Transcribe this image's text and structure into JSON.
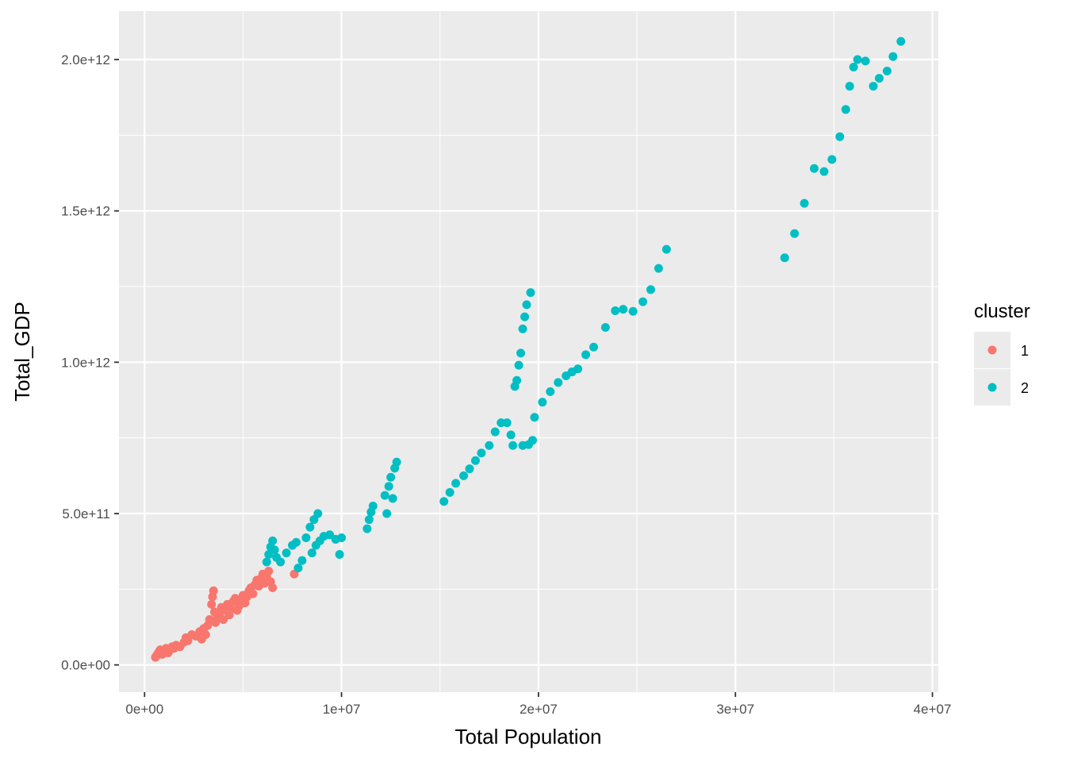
{
  "chart_data": {
    "type": "scatter",
    "xlabel": "Total Population",
    "ylabel": "Total_GDP",
    "xlim": [
      -1300000,
      40300000
    ],
    "ylim": [
      -90000000000,
      2160000000000
    ],
    "x_ticks": [
      0,
      10000000,
      20000000,
      30000000,
      40000000
    ],
    "x_tick_labels": [
      "0e+00",
      "1e+07",
      "2e+07",
      "3e+07",
      "4e+07"
    ],
    "y_ticks": [
      0,
      500000000000,
      1000000000000,
      1500000000000,
      2000000000000
    ],
    "y_tick_labels": [
      "0.0e+00",
      "5.0e+11",
      "1.0e+12",
      "1.5e+12",
      "2.0e+12"
    ],
    "grid": true,
    "legend": {
      "title": "cluster",
      "position": "right",
      "entries": [
        "1",
        "2"
      ]
    },
    "colors": {
      "1": "#F8766D",
      "2": "#00BFC4",
      "panel": "#EBEBEB",
      "grid": "#FFFFFF"
    },
    "series": [
      {
        "name": "1",
        "color": "#F8766D",
        "points": [
          [
            550000,
            25000000000
          ],
          [
            600000,
            30000000000
          ],
          [
            650000,
            35000000000
          ],
          [
            700000,
            40000000000
          ],
          [
            750000,
            45000000000
          ],
          [
            800000,
            50000000000
          ],
          [
            900000,
            35000000000
          ],
          [
            1000000,
            45000000000
          ],
          [
            1100000,
            55000000000
          ],
          [
            1200000,
            40000000000
          ],
          [
            1300000,
            50000000000
          ],
          [
            1400000,
            60000000000
          ],
          [
            1500000,
            55000000000
          ],
          [
            1600000,
            65000000000
          ],
          [
            1800000,
            60000000000
          ],
          [
            2000000,
            75000000000
          ],
          [
            2100000,
            90000000000
          ],
          [
            2200000,
            80000000000
          ],
          [
            2400000,
            100000000000
          ],
          [
            2600000,
            95000000000
          ],
          [
            2800000,
            110000000000
          ],
          [
            2900000,
            85000000000
          ],
          [
            3000000,
            120000000000
          ],
          [
            3100000,
            100000000000
          ],
          [
            3200000,
            130000000000
          ],
          [
            3300000,
            150000000000
          ],
          [
            3400000,
            200000000000
          ],
          [
            3450000,
            225000000000
          ],
          [
            3500000,
            245000000000
          ],
          [
            3550000,
            175000000000
          ],
          [
            3600000,
            140000000000
          ],
          [
            3700000,
            160000000000
          ],
          [
            3800000,
            170000000000
          ],
          [
            3900000,
            190000000000
          ],
          [
            4000000,
            150000000000
          ],
          [
            4100000,
            180000000000
          ],
          [
            4200000,
            200000000000
          ],
          [
            4300000,
            165000000000
          ],
          [
            4400000,
            185000000000
          ],
          [
            4500000,
            210000000000
          ],
          [
            4600000,
            220000000000
          ],
          [
            4700000,
            180000000000
          ],
          [
            4800000,
            195000000000
          ],
          [
            4900000,
            215000000000
          ],
          [
            5000000,
            230000000000
          ],
          [
            5100000,
            205000000000
          ],
          [
            5200000,
            225000000000
          ],
          [
            5300000,
            245000000000
          ],
          [
            5400000,
            255000000000
          ],
          [
            5500000,
            235000000000
          ],
          [
            5600000,
            265000000000
          ],
          [
            5700000,
            280000000000
          ],
          [
            5800000,
            260000000000
          ],
          [
            5900000,
            285000000000
          ],
          [
            6000000,
            300000000000
          ],
          [
            6100000,
            270000000000
          ],
          [
            6200000,
            290000000000
          ],
          [
            6300000,
            310000000000
          ],
          [
            6400000,
            275000000000
          ],
          [
            6500000,
            255000000000
          ],
          [
            7600000,
            300000000000
          ]
        ]
      },
      {
        "name": "2",
        "color": "#00BFC4",
        "points": [
          [
            6200000,
            340000000000
          ],
          [
            6300000,
            365000000000
          ],
          [
            6400000,
            390000000000
          ],
          [
            6500000,
            410000000000
          ],
          [
            6600000,
            380000000000
          ],
          [
            6700000,
            355000000000
          ],
          [
            6900000,
            340000000000
          ],
          [
            7200000,
            370000000000
          ],
          [
            7500000,
            395000000000
          ],
          [
            7700000,
            405000000000
          ],
          [
            7800000,
            320000000000
          ],
          [
            8000000,
            345000000000
          ],
          [
            8200000,
            420000000000
          ],
          [
            8400000,
            455000000000
          ],
          [
            8600000,
            480000000000
          ],
          [
            8800000,
            500000000000
          ],
          [
            8500000,
            370000000000
          ],
          [
            8700000,
            395000000000
          ],
          [
            8900000,
            410000000000
          ],
          [
            9100000,
            425000000000
          ],
          [
            9400000,
            430000000000
          ],
          [
            9700000,
            415000000000
          ],
          [
            9900000,
            365000000000
          ],
          [
            10000000,
            420000000000
          ],
          [
            11300000,
            450000000000
          ],
          [
            11400000,
            480000000000
          ],
          [
            11500000,
            505000000000
          ],
          [
            11600000,
            525000000000
          ],
          [
            12200000,
            560000000000
          ],
          [
            12300000,
            500000000000
          ],
          [
            12400000,
            590000000000
          ],
          [
            12500000,
            620000000000
          ],
          [
            12600000,
            550000000000
          ],
          [
            12700000,
            650000000000
          ],
          [
            12800000,
            670000000000
          ],
          [
            15200000,
            540000000000
          ],
          [
            15500000,
            570000000000
          ],
          [
            15800000,
            600000000000
          ],
          [
            16200000,
            625000000000
          ],
          [
            16500000,
            648000000000
          ],
          [
            16800000,
            675000000000
          ],
          [
            17100000,
            700000000000
          ],
          [
            17500000,
            725000000000
          ],
          [
            17800000,
            770000000000
          ],
          [
            18100000,
            800000000000
          ],
          [
            18400000,
            800000000000
          ],
          [
            18600000,
            760000000000
          ],
          [
            18700000,
            725000000000
          ],
          [
            18800000,
            920000000000
          ],
          [
            18900000,
            940000000000
          ],
          [
            19000000,
            990000000000
          ],
          [
            19100000,
            1030000000000
          ],
          [
            19200000,
            1110000000000
          ],
          [
            19300000,
            1150000000000
          ],
          [
            19400000,
            1190000000000
          ],
          [
            19600000,
            1230000000000
          ],
          [
            19200000,
            725000000000
          ],
          [
            19500000,
            728000000000
          ],
          [
            19700000,
            742000000000
          ],
          [
            19800000,
            818000000000
          ],
          [
            20200000,
            868000000000
          ],
          [
            20600000,
            903000000000
          ],
          [
            21000000,
            933000000000
          ],
          [
            21400000,
            955000000000
          ],
          [
            21700000,
            968000000000
          ],
          [
            22000000,
            978000000000
          ],
          [
            22400000,
            1025000000000
          ],
          [
            22800000,
            1050000000000
          ],
          [
            23400000,
            1115000000000
          ],
          [
            23900000,
            1170000000000
          ],
          [
            24300000,
            1175000000000
          ],
          [
            24800000,
            1168000000000
          ],
          [
            25300000,
            1200000000000
          ],
          [
            25700000,
            1240000000000
          ],
          [
            26100000,
            1310000000000
          ],
          [
            26500000,
            1373000000000
          ],
          [
            32500000,
            1345000000000
          ],
          [
            33000000,
            1425000000000
          ],
          [
            33500000,
            1525000000000
          ],
          [
            34000000,
            1640000000000
          ],
          [
            34500000,
            1630000000000
          ],
          [
            34900000,
            1670000000000
          ],
          [
            35300000,
            1745000000000
          ],
          [
            35600000,
            1835000000000
          ],
          [
            35800000,
            1912000000000
          ],
          [
            36000000,
            1975000000000
          ],
          [
            36200000,
            2000000000000
          ],
          [
            36600000,
            1995000000000
          ],
          [
            37000000,
            1912000000000
          ],
          [
            37300000,
            1938000000000
          ],
          [
            37700000,
            1962000000000
          ],
          [
            38000000,
            2010000000000
          ],
          [
            38400000,
            2060000000000
          ]
        ]
      }
    ]
  }
}
